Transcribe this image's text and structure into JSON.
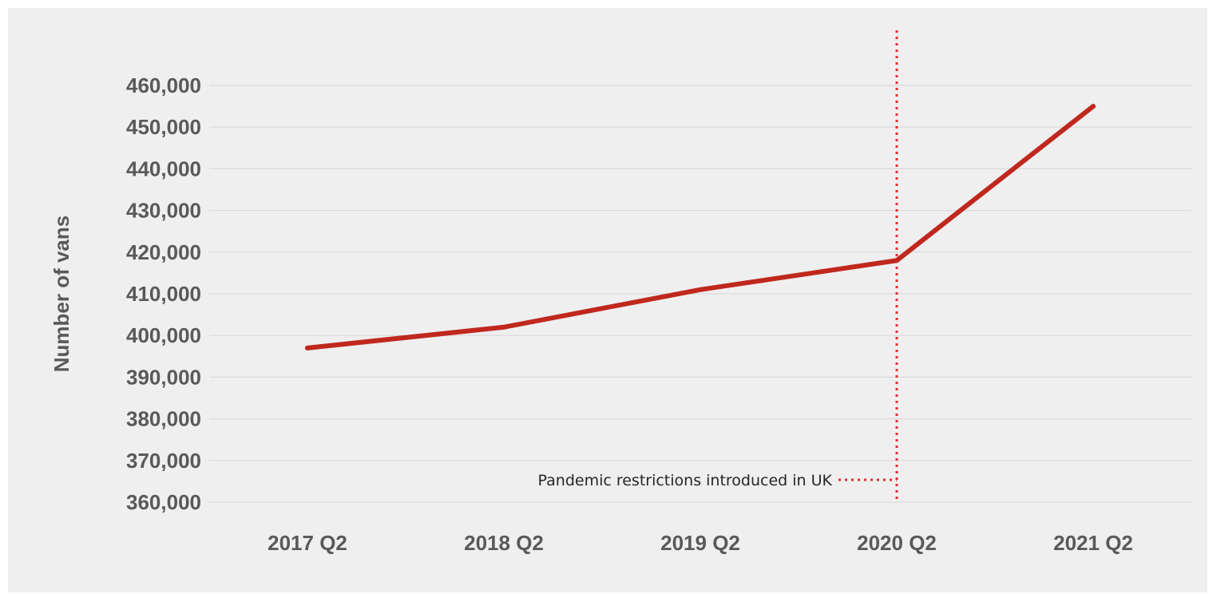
{
  "chart_data": {
    "type": "line",
    "title": "",
    "xlabel": "",
    "ylabel": "Number of vans",
    "categories": [
      "2017 Q2",
      "2018 Q2",
      "2019 Q2",
      "2020 Q2",
      "2021 Q2"
    ],
    "series": [
      {
        "values": [
          397000,
          402000,
          411000,
          418000,
          455000
        ]
      }
    ],
    "ylim": [
      360000,
      470000
    ],
    "yticks": [
      360000,
      370000,
      380000,
      390000,
      400000,
      410000,
      420000,
      430000,
      440000,
      450000,
      460000
    ],
    "ytick_labels": [
      "360,000",
      "370,000",
      "380,000",
      "390,000",
      "400,000",
      "410,000",
      "420,000",
      "430,000",
      "440,000",
      "450,000",
      "460,000"
    ],
    "grid": true,
    "legend": "none",
    "annotation": {
      "text": "Pandemic restrictions introduced in UK",
      "category": "2020 Q2",
      "style": "dotted vertical line"
    },
    "colors": {
      "series": "#c0281e",
      "annotation_line": "#e03030",
      "gridline": "#d9d9d9",
      "background": "#efefef"
    }
  }
}
